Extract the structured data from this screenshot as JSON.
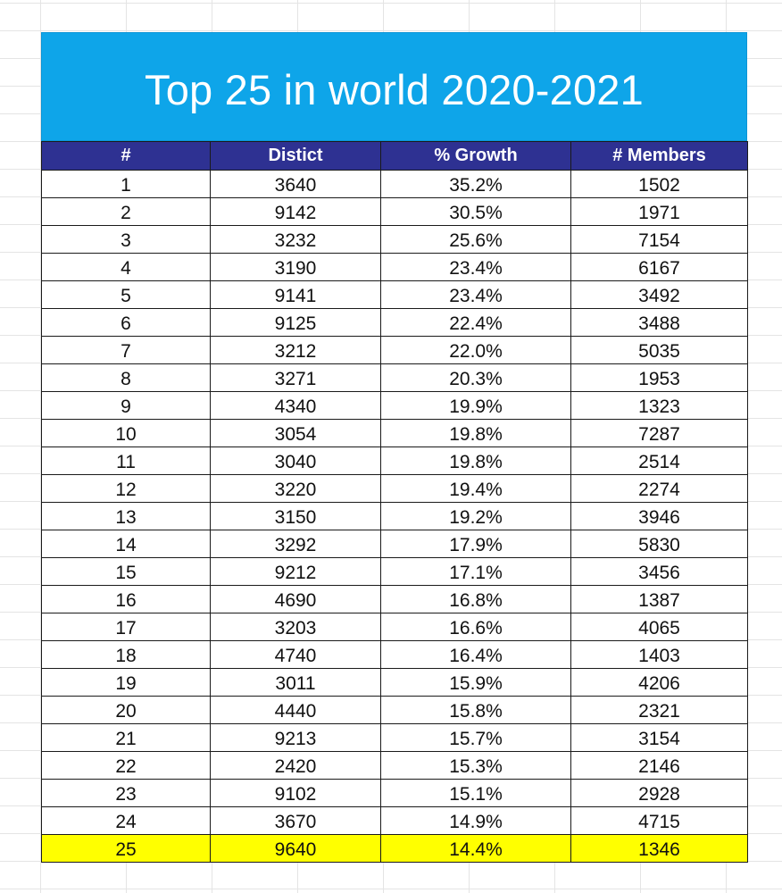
{
  "title": "Top 25 in world 2020-2021",
  "colors": {
    "title_banner": "#0ea5e9",
    "header_row": "#2e3192",
    "highlight_row": "#ffff00"
  },
  "table": {
    "headers": [
      "#",
      "Distict",
      "% Growth",
      "# Members"
    ],
    "highlighted_rank": "25",
    "rows": [
      [
        "1",
        "3640",
        "35.2%",
        "1502"
      ],
      [
        "2",
        "9142",
        "30.5%",
        "1971"
      ],
      [
        "3",
        "3232",
        "25.6%",
        "7154"
      ],
      [
        "4",
        "3190",
        "23.4%",
        "6167"
      ],
      [
        "5",
        "9141",
        "23.4%",
        "3492"
      ],
      [
        "6",
        "9125",
        "22.4%",
        "3488"
      ],
      [
        "7",
        "3212",
        "22.0%",
        "5035"
      ],
      [
        "8",
        "3271",
        "20.3%",
        "1953"
      ],
      [
        "9",
        "4340",
        "19.9%",
        "1323"
      ],
      [
        "10",
        "3054",
        "19.8%",
        "7287"
      ],
      [
        "11",
        "3040",
        "19.8%",
        "2514"
      ],
      [
        "12",
        "3220",
        "19.4%",
        "2274"
      ],
      [
        "13",
        "3150",
        "19.2%",
        "3946"
      ],
      [
        "14",
        "3292",
        "17.9%",
        "5830"
      ],
      [
        "15",
        "9212",
        "17.1%",
        "3456"
      ],
      [
        "16",
        "4690",
        "16.8%",
        "1387"
      ],
      [
        "17",
        "3203",
        "16.6%",
        "4065"
      ],
      [
        "18",
        "4740",
        "16.4%",
        "1403"
      ],
      [
        "19",
        "3011",
        "15.9%",
        "4206"
      ],
      [
        "20",
        "4440",
        "15.8%",
        "2321"
      ],
      [
        "21",
        "9213",
        "15.7%",
        "3154"
      ],
      [
        "22",
        "2420",
        "15.3%",
        "2146"
      ],
      [
        "23",
        "9102",
        "15.1%",
        "2928"
      ],
      [
        "24",
        "3670",
        "14.9%",
        "4715"
      ],
      [
        "25",
        "9640",
        "14.4%",
        "1346"
      ]
    ]
  }
}
